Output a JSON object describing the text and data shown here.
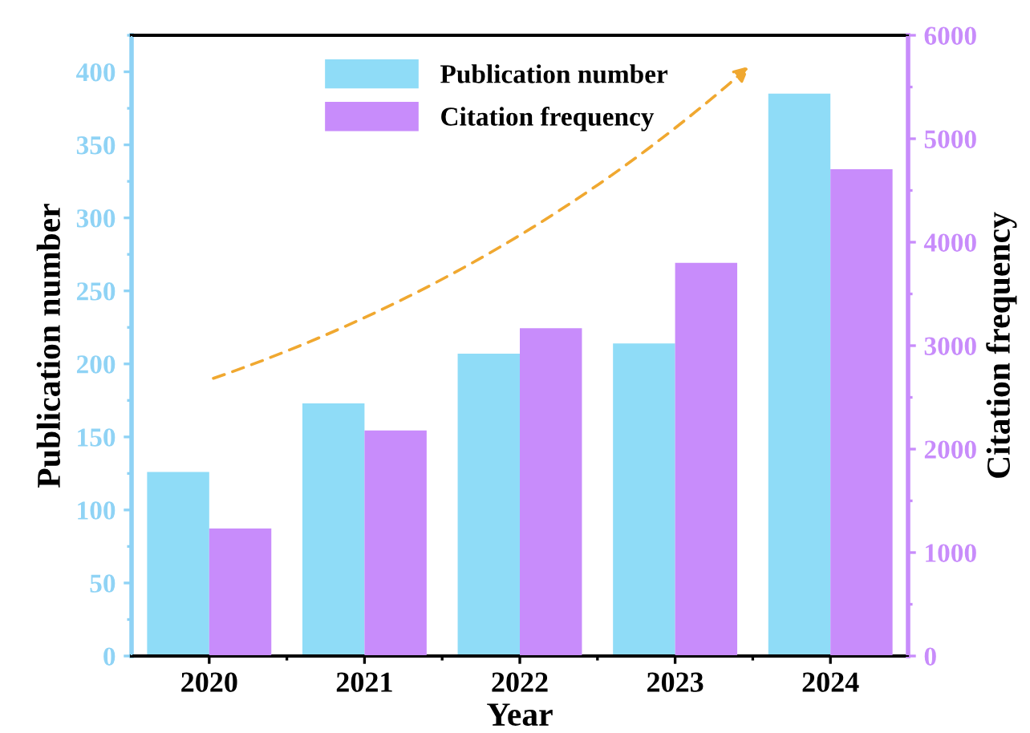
{
  "chart_data": {
    "type": "bar",
    "xlabel": "Year",
    "ylabel": "Publication number",
    "y2label": "Citation frequency",
    "categories": [
      "2020",
      "2021",
      "2022",
      "2023",
      "2024"
    ],
    "series": [
      {
        "name": "Publication number",
        "color": "#8fdcf7",
        "values": [
          126,
          173,
          207,
          214,
          385
        ]
      },
      {
        "name": "Citation frequency",
        "color": "#c88cfb",
        "axis": "y2",
        "values": [
          1233,
          2180,
          3168,
          3800,
          4705
        ]
      }
    ],
    "ylim": [
      0,
      425
    ],
    "yticks": [
      0,
      50,
      100,
      150,
      200,
      250,
      300,
      350,
      400
    ],
    "y2lim": [
      0,
      6000
    ],
    "y2ticks": [
      0,
      1000,
      2000,
      3000,
      4000,
      5000,
      6000
    ],
    "grid": false,
    "legend": "top"
  }
}
